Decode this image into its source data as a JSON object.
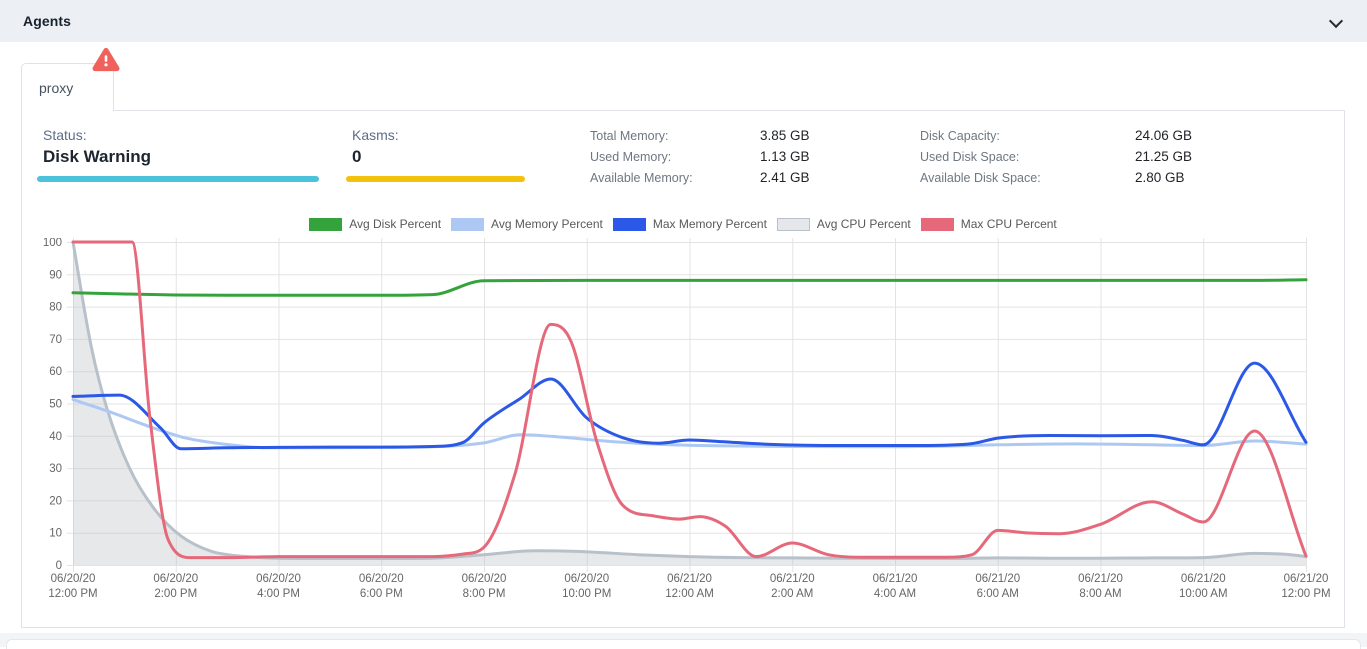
{
  "header": {
    "title": "Agents"
  },
  "card": {
    "tab_label": "proxy",
    "warning_mark": "!"
  },
  "stats": {
    "status_label": "Status:",
    "status_value": "Disk Warning",
    "kasms_label": "Kasms:",
    "kasms_value": "0",
    "memory": [
      {
        "label": "Total Memory:",
        "value": "3.85 GB"
      },
      {
        "label": "Used Memory:",
        "value": "1.13 GB"
      },
      {
        "label": "Available Memory:",
        "value": "2.41 GB"
      }
    ],
    "disk": [
      {
        "label": "Disk Capacity:",
        "value": "24.06 GB"
      },
      {
        "label": "Used Disk Space:",
        "value": "21.25 GB"
      },
      {
        "label": "Available Disk Space:",
        "value": "2.80 GB"
      }
    ]
  },
  "colors": {
    "topbar_bg": "#ecf0f4",
    "status_underline": "#4cc3da",
    "kasms_underline": "#f4c20d",
    "warning_badge": "#f0615c",
    "grid": "#e3e3e3",
    "axis_text": "#666666"
  },
  "chart_data": {
    "type": "line",
    "title": "",
    "xlabel": "",
    "ylabel": "",
    "x_unit": "hours since 06/20/20 12:00 PM (2-hour ticks)",
    "ylim": [
      0,
      100
    ],
    "y_ticks": [
      0,
      10,
      20,
      30,
      40,
      50,
      60,
      70,
      80,
      90,
      100
    ],
    "x_ticks": [
      [
        "06/20/20",
        "12:00 PM"
      ],
      [
        "06/20/20",
        "2:00 PM"
      ],
      [
        "06/20/20",
        "4:00 PM"
      ],
      [
        "06/20/20",
        "6:00 PM"
      ],
      [
        "06/20/20",
        "8:00 PM"
      ],
      [
        "06/20/20",
        "10:00 PM"
      ],
      [
        "06/21/20",
        "12:00 AM"
      ],
      [
        "06/21/20",
        "2:00 AM"
      ],
      [
        "06/21/20",
        "4:00 AM"
      ],
      [
        "06/21/20",
        "6:00 AM"
      ],
      [
        "06/21/20",
        "8:00 AM"
      ],
      [
        "06/21/20",
        "10:00 AM"
      ],
      [
        "06/21/20",
        "12:00 PM"
      ]
    ],
    "grid": true,
    "legend_position": "top",
    "series": [
      {
        "name": "Avg Disk Percent",
        "color": "#35a33c",
        "legend_fill": "#35a33c",
        "points": [
          [
            0,
            84.3
          ],
          [
            1,
            83.9
          ],
          [
            2,
            83.6
          ],
          [
            3,
            83.5
          ],
          [
            4,
            83.5
          ],
          [
            5,
            83.5
          ],
          [
            6,
            83.5
          ],
          [
            7,
            83.7
          ],
          [
            8,
            88.0
          ],
          [
            10,
            88.1
          ],
          [
            12,
            88.1
          ],
          [
            14,
            88.1
          ],
          [
            16,
            88.1
          ],
          [
            18,
            88.1
          ],
          [
            20,
            88.1
          ],
          [
            22,
            88.1
          ],
          [
            23,
            88.1
          ],
          [
            24,
            88.3
          ]
        ]
      },
      {
        "name": "Avg Memory Percent",
        "color": "#adc9f3",
        "legend_fill": "#adc9f3",
        "points": [
          [
            0,
            51.2
          ],
          [
            0.7,
            47.5
          ],
          [
            1.5,
            42.8
          ],
          [
            2.2,
            39.3
          ],
          [
            3,
            37.3
          ],
          [
            3.8,
            36.3
          ],
          [
            5,
            36.3
          ],
          [
            6,
            36.4
          ],
          [
            7,
            36.6
          ],
          [
            8,
            37.8
          ],
          [
            8.7,
            40.3
          ],
          [
            9.5,
            39.6
          ],
          [
            10.5,
            38.2
          ],
          [
            11.5,
            37.3
          ],
          [
            12.5,
            36.9
          ],
          [
            14,
            36.7
          ],
          [
            15.5,
            36.6
          ],
          [
            17,
            36.8
          ],
          [
            18,
            37.2
          ],
          [
            19.5,
            37.5
          ],
          [
            21,
            37.2
          ],
          [
            22,
            37.0
          ],
          [
            23,
            38.4
          ],
          [
            24,
            37.4
          ]
        ]
      },
      {
        "name": "Max Memory Percent",
        "color": "#2b58e6",
        "legend_fill": "#2b58e6",
        "points": [
          [
            0,
            52.2
          ],
          [
            0.9,
            52.6
          ],
          [
            1.7,
            42.5
          ],
          [
            2.1,
            36.0
          ],
          [
            3,
            36.3
          ],
          [
            4,
            36.4
          ],
          [
            5,
            36.5
          ],
          [
            6,
            36.5
          ],
          [
            7,
            36.7
          ],
          [
            7.6,
            38.0
          ],
          [
            8,
            44.0
          ],
          [
            8.7,
            51.5
          ],
          [
            9.3,
            57.6
          ],
          [
            10,
            45.5
          ],
          [
            10.7,
            39.4
          ],
          [
            11.4,
            37.7
          ],
          [
            12,
            38.7
          ],
          [
            12.6,
            38.2
          ],
          [
            13.5,
            37.4
          ],
          [
            15,
            37.0
          ],
          [
            16.5,
            37.0
          ],
          [
            17.5,
            37.6
          ],
          [
            18,
            39.3
          ],
          [
            19,
            40.1
          ],
          [
            20,
            40.0
          ],
          [
            21,
            40.1
          ],
          [
            21.6,
            38.6
          ],
          [
            22,
            37.2
          ],
          [
            23,
            62.5
          ],
          [
            24,
            38.0
          ]
        ]
      },
      {
        "name": "Avg CPU Percent",
        "color": "#b8c1ca",
        "legend_fill": "#e5e7ea",
        "legend_border": "#b8c1ca",
        "area_fill": "rgba(190,195,201,0.38)",
        "points": [
          [
            0,
            100
          ],
          [
            0.35,
            68
          ],
          [
            0.65,
            49
          ],
          [
            1.1,
            30
          ],
          [
            1.6,
            17
          ],
          [
            2.1,
            9
          ],
          [
            2.7,
            4.2
          ],
          [
            3.3,
            2.7
          ],
          [
            4,
            2.1
          ],
          [
            5,
            2.0
          ],
          [
            6,
            2.0
          ],
          [
            7,
            2.1
          ],
          [
            8,
            3.2
          ],
          [
            9,
            4.4
          ],
          [
            9.8,
            4.2
          ],
          [
            11,
            3.2
          ],
          [
            12,
            2.6
          ],
          [
            13,
            2.3
          ],
          [
            14,
            2.2
          ],
          [
            15,
            2.1
          ],
          [
            16,
            2.0
          ],
          [
            17,
            2.0
          ],
          [
            18,
            2.2
          ],
          [
            19,
            2.1
          ],
          [
            20,
            2.1
          ],
          [
            21,
            2.2
          ],
          [
            22,
            2.3
          ],
          [
            23,
            3.6
          ],
          [
            23.6,
            3.3
          ],
          [
            24,
            2.6
          ]
        ]
      },
      {
        "name": "Max CPU Percent",
        "color": "#e5697a",
        "legend_fill": "#e5697a",
        "points": [
          [
            0,
            100
          ],
          [
            0.6,
            100
          ],
          [
            1.15,
            100
          ],
          [
            1.5,
            45
          ],
          [
            1.85,
            8
          ],
          [
            2.3,
            2.3
          ],
          [
            3,
            2.3
          ],
          [
            4,
            2.6
          ],
          [
            5,
            2.6
          ],
          [
            6,
            2.6
          ],
          [
            7,
            2.6
          ],
          [
            7.6,
            3.4
          ],
          [
            8,
            5.5
          ],
          [
            8.6,
            28
          ],
          [
            9.3,
            74.5
          ],
          [
            9.7,
            69
          ],
          [
            10.2,
            38
          ],
          [
            10.7,
            18.5
          ],
          [
            11.3,
            15.2
          ],
          [
            11.8,
            14.2
          ],
          [
            12.2,
            15.0
          ],
          [
            12.7,
            12
          ],
          [
            13.3,
            2.6
          ],
          [
            14,
            6.8
          ],
          [
            14.7,
            3.2
          ],
          [
            15.3,
            2.4
          ],
          [
            16,
            2.4
          ],
          [
            17,
            2.4
          ],
          [
            17.5,
            3.2
          ],
          [
            18,
            10.7
          ],
          [
            18.6,
            9.9
          ],
          [
            19.2,
            9.7
          ],
          [
            20,
            12.6
          ],
          [
            21,
            19.6
          ],
          [
            21.6,
            15.8
          ],
          [
            22,
            13.3
          ],
          [
            23,
            41.5
          ],
          [
            24,
            2.8
          ]
        ]
      }
    ],
    "draw_order": [
      3,
      0,
      1,
      2,
      4
    ]
  }
}
